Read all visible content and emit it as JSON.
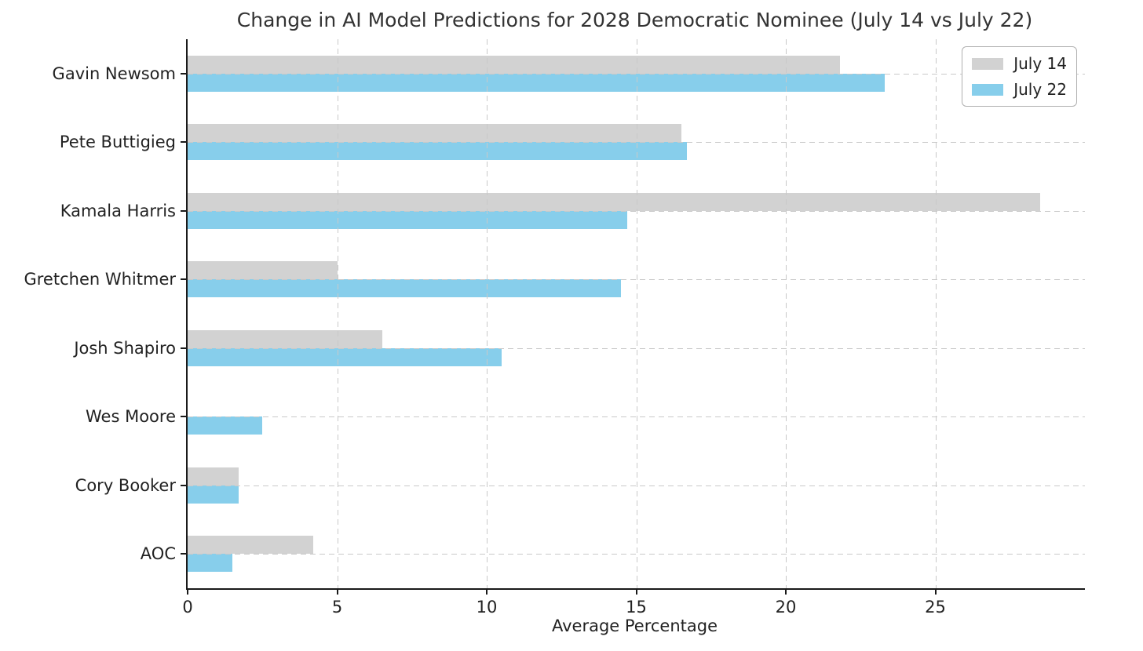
{
  "chart_data": {
    "type": "bar",
    "orientation": "horizontal",
    "title": "Change in AI Model Predictions for 2028 Democratic Nominee (July 14 vs July 22)",
    "xlabel": "Average Percentage",
    "ylabel": "",
    "categories": [
      "Gavin Newsom",
      "Pete Buttigieg",
      "Kamala Harris",
      "Gretchen Whitmer",
      "Josh Shapiro",
      "Wes Moore",
      "Cory Booker",
      "AOC"
    ],
    "series": [
      {
        "name": "July 14",
        "color": "#d2d2d2",
        "values": [
          21.8,
          16.5,
          28.5,
          5.0,
          6.5,
          0.0,
          1.7,
          4.2
        ]
      },
      {
        "name": "July 22",
        "color": "#87ceeb",
        "values": [
          23.3,
          16.7,
          14.7,
          14.5,
          10.5,
          2.5,
          1.7,
          1.5
        ]
      }
    ],
    "xlim": [
      0,
      30
    ],
    "xticks": [
      0,
      5,
      10,
      15,
      20,
      25
    ],
    "grid": true,
    "grid_style": "dashed",
    "legend": {
      "position": "upper right"
    },
    "colors": {
      "grid": "#c9c9c9",
      "axis": "#1a1a1a",
      "text": "#222222",
      "background": "#ffffff"
    }
  }
}
